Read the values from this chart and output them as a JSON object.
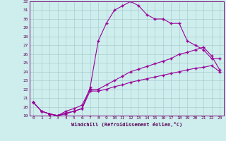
{
  "xlabel": "Windchill (Refroidissement éolien,°C)",
  "background_color": "#ceeeed",
  "grid_color": "#aacccc",
  "line_color": "#990099",
  "ylim": [
    19,
    32
  ],
  "xlim": [
    -0.5,
    23.5
  ],
  "yticks": [
    19,
    20,
    21,
    22,
    23,
    24,
    25,
    26,
    27,
    28,
    29,
    30,
    31,
    32
  ],
  "xticks": [
    0,
    1,
    2,
    3,
    4,
    5,
    6,
    7,
    8,
    9,
    10,
    11,
    12,
    13,
    14,
    15,
    16,
    17,
    18,
    19,
    20,
    21,
    22,
    23
  ],
  "line1_x": [
    0,
    1,
    2,
    3,
    4,
    5,
    6,
    7,
    8,
    9,
    10,
    11,
    12,
    13,
    14,
    15,
    16,
    17,
    18,
    19,
    20,
    21,
    22,
    23
  ],
  "line1_y": [
    20.5,
    19.5,
    19.2,
    19.0,
    19.2,
    19.5,
    19.8,
    22.2,
    27.5,
    29.5,
    31.0,
    31.5,
    32.0,
    31.5,
    30.5,
    30.0,
    30.0,
    29.5,
    29.5,
    27.5,
    27.0,
    26.5,
    25.5,
    25.5
  ],
  "line2_x": [
    0,
    1,
    2,
    3,
    4,
    5,
    6,
    7,
    8,
    9,
    10,
    11,
    12,
    13,
    14,
    15,
    16,
    17,
    18,
    19,
    20,
    21,
    22,
    23
  ],
  "line2_y": [
    20.5,
    19.5,
    19.2,
    19.0,
    19.5,
    19.8,
    20.2,
    22.0,
    22.0,
    22.5,
    23.0,
    23.5,
    24.0,
    24.3,
    24.6,
    24.9,
    25.2,
    25.5,
    26.0,
    26.2,
    26.5,
    26.8,
    25.8,
    24.2
  ],
  "line3_x": [
    0,
    1,
    2,
    3,
    4,
    5,
    6,
    7,
    8,
    9,
    10,
    11,
    12,
    13,
    14,
    15,
    16,
    17,
    18,
    19,
    20,
    21,
    22,
    23
  ],
  "line3_y": [
    20.5,
    19.5,
    19.2,
    19.0,
    19.3,
    19.5,
    19.8,
    21.8,
    21.8,
    22.0,
    22.3,
    22.5,
    22.8,
    23.0,
    23.2,
    23.4,
    23.6,
    23.8,
    24.0,
    24.2,
    24.4,
    24.5,
    24.7,
    24.0
  ]
}
